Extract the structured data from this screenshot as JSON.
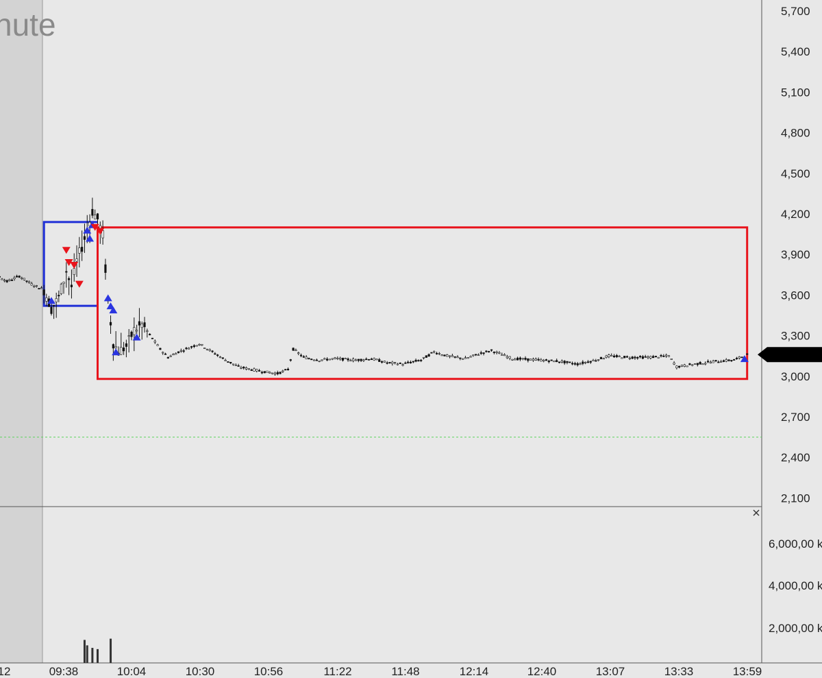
{
  "header": {
    "title_fragment": "nute"
  },
  "chart_data": {
    "type": "candlestick",
    "price_axis": {
      "ticks": [
        "5,700",
        "5,400",
        "5,100",
        "4,800",
        "4,500",
        "4,200",
        "3,900",
        "3,600",
        "3,300",
        "3,000",
        "2,700",
        "2,400",
        "2,100"
      ],
      "range": [
        2.0,
        5.78
      ]
    },
    "volume_axis": {
      "ticks": [
        "6,000,00 k",
        "4,000,00 k",
        "2,000,00 k"
      ]
    },
    "time_axis": {
      "ticks": [
        "12",
        "09:38",
        "10:04",
        "10:30",
        "10:56",
        "11:22",
        "11:48",
        "12:14",
        "12:40",
        "13:07",
        "13:33",
        "13:59"
      ]
    },
    "reference_line_price": 2.55,
    "last_price": 3.16,
    "boxes": [
      {
        "name": "blue-range-box",
        "color": "#1f2fd6",
        "price_top": 4.14,
        "price_bottom": 3.52,
        "time_start": "09:30",
        "time_end": "09:51"
      },
      {
        "name": "red-range-box",
        "color": "#e8141c",
        "price_top": 4.1,
        "price_bottom": 2.98,
        "time_start": "09:51",
        "time_end": "14:00"
      }
    ],
    "price_path": [
      [
        "09:00",
        3.76
      ],
      [
        "09:05",
        3.72
      ],
      [
        "09:10",
        3.76
      ],
      [
        "09:15",
        3.7
      ],
      [
        "09:20",
        3.74
      ],
      [
        "09:25",
        3.68
      ],
      [
        "09:30",
        3.64
      ],
      [
        "09:33",
        3.5
      ],
      [
        "09:36",
        3.58
      ],
      [
        "09:39",
        3.78
      ],
      [
        "09:41",
        3.66
      ],
      [
        "09:43",
        3.85
      ],
      [
        "09:45",
        3.96
      ],
      [
        "09:47",
        4.08
      ],
      [
        "09:49",
        4.22
      ],
      [
        "09:51",
        4.16
      ],
      [
        "09:53",
        4.04
      ],
      [
        "09:55",
        3.55
      ],
      [
        "09:57",
        3.25
      ],
      [
        "09:59",
        3.18
      ],
      [
        "10:02",
        3.22
      ],
      [
        "10:05",
        3.34
      ],
      [
        "10:08",
        3.38
      ],
      [
        "10:12",
        3.28
      ],
      [
        "10:15",
        3.2
      ],
      [
        "10:18",
        3.14
      ],
      [
        "10:22",
        3.18
      ],
      [
        "10:26",
        3.21
      ],
      [
        "10:30",
        3.24
      ],
      [
        "10:35",
        3.18
      ],
      [
        "10:40",
        3.12
      ],
      [
        "10:45",
        3.07
      ],
      [
        "10:50",
        3.05
      ],
      [
        "10:56",
        3.03
      ],
      [
        "11:00",
        3.02
      ],
      [
        "11:04",
        3.05
      ],
      [
        "11:06",
        3.2
      ],
      [
        "11:10",
        3.14
      ],
      [
        "11:16",
        3.12
      ],
      [
        "11:22",
        3.13
      ],
      [
        "11:30",
        3.12
      ],
      [
        "11:36",
        3.13
      ],
      [
        "11:42",
        3.1
      ],
      [
        "11:48",
        3.09
      ],
      [
        "11:55",
        3.12
      ],
      [
        "12:00",
        3.18
      ],
      [
        "12:05",
        3.15
      ],
      [
        "12:12",
        3.13
      ],
      [
        "12:18",
        3.17
      ],
      [
        "12:22",
        3.19
      ],
      [
        "12:30",
        3.13
      ],
      [
        "12:40",
        3.12
      ],
      [
        "12:48",
        3.11
      ],
      [
        "12:55",
        3.09
      ],
      [
        "13:02",
        3.12
      ],
      [
        "13:07",
        3.15
      ],
      [
        "13:15",
        3.14
      ],
      [
        "13:22",
        3.14
      ],
      [
        "13:30",
        3.15
      ],
      [
        "13:33",
        3.07
      ],
      [
        "13:40",
        3.09
      ],
      [
        "13:48",
        3.11
      ],
      [
        "13:55",
        3.12
      ],
      [
        "14:00",
        3.16
      ]
    ],
    "signals_up": [
      [
        "09:33",
        3.56
      ],
      [
        "09:47",
        4.08
      ],
      [
        "09:48",
        4.02
      ],
      [
        "09:49",
        4.12
      ],
      [
        "09:55",
        3.58
      ],
      [
        "09:56",
        3.52
      ],
      [
        "09:57",
        3.49
      ],
      [
        "09:58",
        3.18
      ],
      [
        "10:06",
        3.29
      ],
      [
        "13:59",
        3.13
      ]
    ],
    "signals_down": [
      [
        "09:39",
        3.93
      ],
      [
        "09:40",
        3.84
      ],
      [
        "09:42",
        3.82
      ],
      [
        "09:44",
        3.68
      ],
      [
        "09:50",
        4.1
      ],
      [
        "09:52",
        4.07
      ]
    ],
    "volume_bars": [
      [
        "09:46",
        0.55
      ],
      [
        "09:47",
        0.42
      ],
      [
        "09:49",
        0.36
      ],
      [
        "09:51",
        0.33
      ],
      [
        "09:56",
        0.58
      ]
    ]
  }
}
